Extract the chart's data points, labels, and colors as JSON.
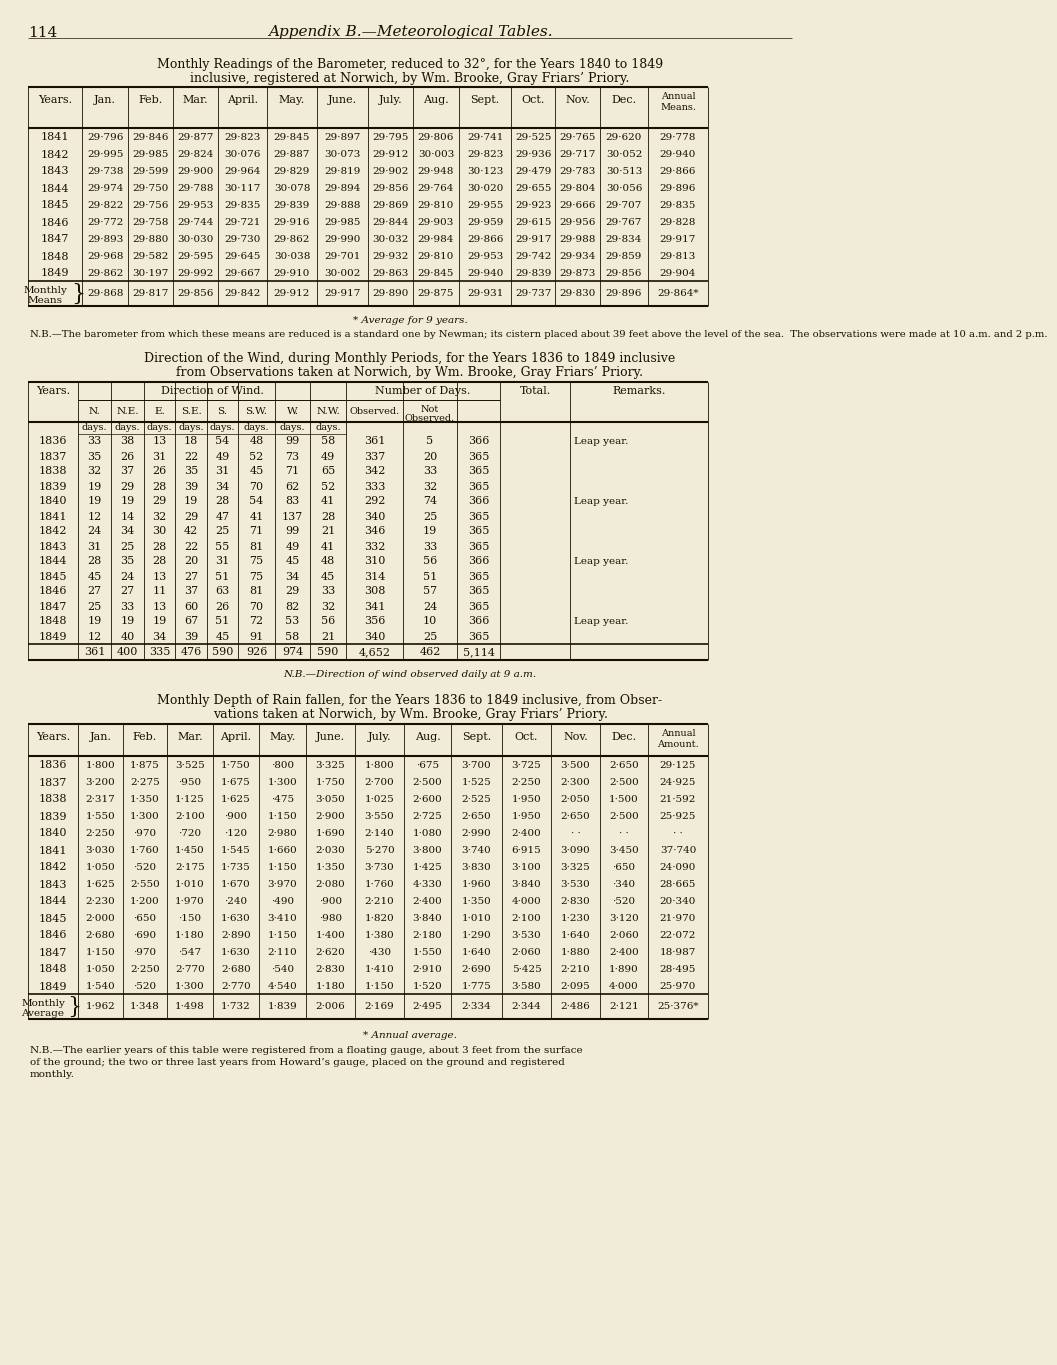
{
  "bg_color": "#f0ecd8",
  "text_color": "#1a0f00",
  "page_number": "114",
  "page_title": "Appendix B.—Meteorological Tables.",
  "baro_title1": "Monthly Readings of the Barometer, reduced to 32°, for the Years 1840 to 1849",
  "baro_title2": "inclusive, registered at Norwich, by Wm. Brooke, Gray Friars’ Priory.",
  "baro_data": [
    [
      "1841",
      "29·796",
      "29·846",
      "29·877",
      "29·823",
      "29·845",
      "29·897",
      "29·795",
      "29·806",
      "29·741",
      "29·525",
      "29·765",
      "29·620",
      "29·778"
    ],
    [
      "1842",
      "29·995",
      "29·985",
      "29·824",
      "30·076",
      "29·887",
      "30·073",
      "29·912",
      "30·003",
      "29·823",
      "29·936",
      "29·717",
      "30·052",
      "29·940"
    ],
    [
      "1843",
      "29·738",
      "29·599",
      "29·900",
      "29·964",
      "29·829",
      "29·819",
      "29·902",
      "29·948",
      "30·123",
      "29·479",
      "29·783",
      "30·513",
      "29·866"
    ],
    [
      "1844",
      "29·974",
      "29·750",
      "29·788",
      "30·117",
      "30·078",
      "29·894",
      "29·856",
      "29·764",
      "30·020",
      "29·655",
      "29·804",
      "30·056",
      "29·896"
    ],
    [
      "1845",
      "29·822",
      "29·756",
      "29·953",
      "29·835",
      "29·839",
      "29·888",
      "29·869",
      "29·810",
      "29·955",
      "29·923",
      "29·666",
      "29·707",
      "29·835"
    ],
    [
      "1846",
      "29·772",
      "29·758",
      "29·744",
      "29·721",
      "29·916",
      "29·985",
      "29·844",
      "29·903",
      "29·959",
      "29·615",
      "29·956",
      "29·767",
      "29·828"
    ],
    [
      "1847",
      "29·893",
      "29·880",
      "30·030",
      "29·730",
      "29·862",
      "29·990",
      "30·032",
      "29·984",
      "29·866",
      "29·917",
      "29·988",
      "29·834",
      "29·917"
    ],
    [
      "1848",
      "29·968",
      "29·582",
      "29·595",
      "29·645",
      "30·038",
      "29·701",
      "29·932",
      "29·810",
      "29·953",
      "29·742",
      "29·934",
      "29·859",
      "29·813"
    ],
    [
      "1849",
      "29·862",
      "30·197",
      "29·992",
      "29·667",
      "29·910",
      "30·002",
      "29·863",
      "29·845",
      "29·940",
      "29·839",
      "29·873",
      "29·856",
      "29·904"
    ]
  ],
  "baro_means": [
    "29·868",
    "29·817",
    "29·856",
    "29·842",
    "29·912",
    "29·917",
    "29·890",
    "29·875",
    "29·931",
    "29·737",
    "29·830",
    "29·896",
    "29·864*"
  ],
  "baro_footnote1": "* Average for 9 years.",
  "baro_footnote2": "N.B.—The barometer from which these means are reduced is a standard one by Newman; its cistern placed about 39 feet above the level of the sea.  The observations were made at 10 a.m. and 2 p.m.",
  "wind_title1": "Direction of the Wind, during Monthly Periods, for the Years 1836 to 1849 inclusive",
  "wind_title2": "from Observations taken at Norwich, by Wm. Brooke, Gray Friars’ Priory.",
  "wind_data": [
    [
      "1836",
      "33",
      "38",
      "13",
      "18",
      "54",
      "48",
      "99",
      "58",
      "361",
      "5",
      "366",
      "Leap year."
    ],
    [
      "1837",
      "35",
      "26",
      "31",
      "22",
      "49",
      "52",
      "73",
      "49",
      "337",
      "20",
      "365",
      ""
    ],
    [
      "1838",
      "32",
      "37",
      "26",
      "35",
      "31",
      "45",
      "71",
      "65",
      "342",
      "33",
      "365",
      ""
    ],
    [
      "1839",
      "19",
      "29",
      "28",
      "39",
      "34",
      "70",
      "62",
      "52",
      "333",
      "32",
      "365",
      ""
    ],
    [
      "1840",
      "19",
      "19",
      "29",
      "19",
      "28",
      "54",
      "83",
      "41",
      "292",
      "74",
      "366",
      "Leap year."
    ],
    [
      "1841",
      "12",
      "14",
      "32",
      "29",
      "47",
      "41",
      "137",
      "28",
      "340",
      "25",
      "365",
      ""
    ],
    [
      "1842",
      "24",
      "34",
      "30",
      "42",
      "25",
      "71",
      "99",
      "21",
      "346",
      "19",
      "365",
      ""
    ],
    [
      "1843",
      "31",
      "25",
      "28",
      "22",
      "55",
      "81",
      "49",
      "41",
      "332",
      "33",
      "365",
      ""
    ],
    [
      "1844",
      "28",
      "35",
      "28",
      "20",
      "31",
      "75",
      "45",
      "48",
      "310",
      "56",
      "366",
      "Leap year."
    ],
    [
      "1845",
      "45",
      "24",
      "13",
      "27",
      "51",
      "75",
      "34",
      "45",
      "314",
      "51",
      "365",
      ""
    ],
    [
      "1846",
      "27",
      "27",
      "11",
      "37",
      "63",
      "81",
      "29",
      "33",
      "308",
      "57",
      "365",
      ""
    ],
    [
      "1847",
      "25",
      "33",
      "13",
      "60",
      "26",
      "70",
      "82",
      "32",
      "341",
      "24",
      "365",
      ""
    ],
    [
      "1848",
      "19",
      "19",
      "19",
      "67",
      "51",
      "72",
      "53",
      "56",
      "356",
      "10",
      "366",
      "Leap year."
    ],
    [
      "1849",
      "12",
      "40",
      "34",
      "39",
      "45",
      "91",
      "58",
      "21",
      "340",
      "25",
      "365",
      ""
    ]
  ],
  "wind_totals": [
    "361",
    "400",
    "335",
    "476",
    "590",
    "926",
    "974",
    "590",
    "4,652",
    "462",
    "5,114"
  ],
  "wind_footnote": "N.B.—Direction of wind observed daily at 9 a.m.",
  "rain_title1": "Monthly Depth of Rain fallen, for the Years 1836 to 1849 inclusive, from Obser-",
  "rain_title2": "vations taken at Norwich, by Wm. Brooke, Gray Friars’ Priory.",
  "rain_data": [
    [
      "1836",
      "1·800",
      "1·875",
      "3·525",
      "1·750",
      "·800",
      "3·325",
      "1·800",
      "·675",
      "3·700",
      "3·725",
      "3·500",
      "2·650",
      "29·125"
    ],
    [
      "1837",
      "3·200",
      "2·275",
      "·950",
      "1·675",
      "1·300",
      "1·750",
      "2·700",
      "2·500",
      "1·525",
      "2·250",
      "2·300",
      "2·500",
      "24·925"
    ],
    [
      "1838",
      "2·317",
      "1·350",
      "1·125",
      "1·625",
      "·475",
      "3·050",
      "1·025",
      "2·600",
      "2·525",
      "1·950",
      "2·050",
      "1·500",
      "21·592"
    ],
    [
      "1839",
      "1·550",
      "1·300",
      "2·100",
      "·900",
      "1·150",
      "2·900",
      "3·550",
      "2·725",
      "2·650",
      "1·950",
      "2·650",
      "2·500",
      "25·925"
    ],
    [
      "1840",
      "2·250",
      "·970",
      "·720",
      "·120",
      "2·980",
      "1·690",
      "2·140",
      "1·080",
      "2·990",
      "2·400",
      "· ·",
      "· ·",
      "· ·"
    ],
    [
      "1841",
      "3·030",
      "1·760",
      "1·450",
      "1·545",
      "1·660",
      "2·030",
      "5·270",
      "3·800",
      "3·740",
      "6·915",
      "3·090",
      "3·450",
      "37·740"
    ],
    [
      "1842",
      "1·050",
      "·520",
      "2·175",
      "1·735",
      "1·150",
      "1·350",
      "3·730",
      "1·425",
      "3·830",
      "3·100",
      "3·325",
      "·650",
      "24·090"
    ],
    [
      "1843",
      "1·625",
      "2·550",
      "1·010",
      "1·670",
      "3·970",
      "2·080",
      "1·760",
      "4·330",
      "1·960",
      "3·840",
      "3·530",
      "·340",
      "28·665"
    ],
    [
      "1844",
      "2·230",
      "1·200",
      "1·970",
      "·240",
      "·490",
      "·900",
      "2·210",
      "2·400",
      "1·350",
      "4·000",
      "2·830",
      "·520",
      "20·340"
    ],
    [
      "1845",
      "2·000",
      "·650",
      "·150",
      "1·630",
      "3·410",
      "·980",
      "1·820",
      "3·840",
      "1·010",
      "2·100",
      "1·230",
      "3·120",
      "21·970"
    ],
    [
      "1846",
      "2·680",
      "·690",
      "1·180",
      "2·890",
      "1·150",
      "1·400",
      "1·380",
      "2·180",
      "1·290",
      "3·530",
      "1·640",
      "2·060",
      "22·072"
    ],
    [
      "1847",
      "1·150",
      "·970",
      "·547",
      "1·630",
      "2·110",
      "2·620",
      "·430",
      "1·550",
      "1·640",
      "2·060",
      "1·880",
      "2·400",
      "18·987"
    ],
    [
      "1848",
      "1·050",
      "2·250",
      "2·770",
      "2·680",
      "·540",
      "2·830",
      "1·410",
      "2·910",
      "2·690",
      "5·425",
      "2·210",
      "1·890",
      "28·495"
    ],
    [
      "1849",
      "1·540",
      "·520",
      "1·300",
      "2·770",
      "4·540",
      "1·180",
      "1·150",
      "1·520",
      "1·775",
      "3·580",
      "2·095",
      "4·000",
      "25·970"
    ]
  ],
  "rain_means": [
    "1·962",
    "1·348",
    "1·498",
    "1·732",
    "1·839",
    "2·006",
    "2·169",
    "2·495",
    "2·334",
    "2·344",
    "2·486",
    "2·121",
    "25·376*"
  ],
  "rain_footnote1": "* Annual average.",
  "rain_footnote2a": "N.B.—The earlier years of this table were registered from a floating gauge, about 3 feet from the surface",
  "rain_footnote2b": "of the ground; the two or three last years from Howard’s gauge, placed on the ground and registered",
  "rain_footnote2c": "monthly."
}
